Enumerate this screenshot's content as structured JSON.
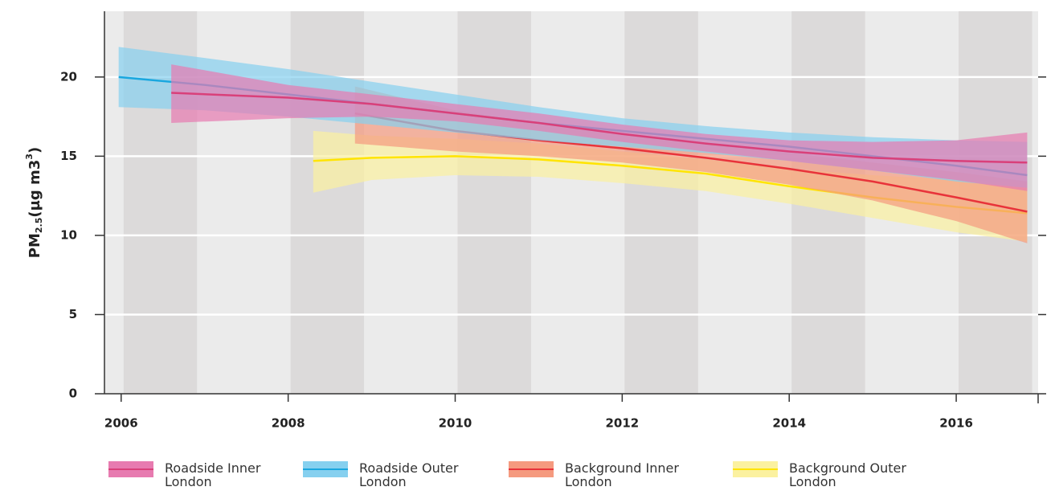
{
  "chart_data": {
    "type": "line",
    "y_label_parts": [
      "PM",
      "2.5",
      "(µg m3",
      "3",
      ")"
    ],
    "xlim": [
      2005.8,
      2017
    ],
    "xticks": [
      2006,
      2008,
      2010,
      2012,
      2014,
      2016
    ],
    "ylim": [
      0,
      24
    ],
    "yticks": [
      0,
      5,
      10,
      15,
      20
    ],
    "grid": true,
    "series": [
      {
        "name": "Roadside Inner London",
        "color": "#d9407a",
        "band_color": "#e77bb0",
        "x": [
          2006.6,
          2008,
          2009,
          2010,
          2011,
          2012,
          2013,
          2014,
          2015,
          2016,
          2016.85
        ],
        "values": [
          19.0,
          18.7,
          18.3,
          17.7,
          17.1,
          16.4,
          15.8,
          15.3,
          14.9,
          14.7,
          14.6
        ],
        "upper": [
          20.8,
          19.5,
          18.9,
          18.3,
          17.7,
          17.0,
          16.4,
          16.0,
          15.9,
          16.0,
          16.5
        ],
        "lower": [
          17.1,
          17.4,
          17.5,
          17.2,
          16.6,
          15.9,
          15.3,
          14.7,
          14.1,
          13.5,
          12.8
        ]
      },
      {
        "name": "Roadside Outer London",
        "color": "#1aa7df",
        "band_color": "#86d0ef",
        "x": [
          2005.97,
          2007,
          2008,
          2009,
          2010,
          2011,
          2012,
          2013,
          2014,
          2015,
          2016,
          2016.85
        ],
        "values": [
          20.0,
          19.5,
          18.9,
          18.3,
          17.7,
          17.1,
          16.6,
          16.1,
          15.6,
          15.0,
          14.4,
          13.8
        ],
        "upper": [
          21.9,
          21.2,
          20.5,
          19.7,
          18.9,
          18.1,
          17.4,
          16.9,
          16.5,
          16.2,
          16.0,
          15.9
        ],
        "lower": [
          18.1,
          17.9,
          17.5,
          17.0,
          16.5,
          16.0,
          15.6,
          15.2,
          14.7,
          14.1,
          13.4,
          13.0
        ]
      },
      {
        "name": "Background Inner London",
        "color": "#e8333a",
        "band_color": "#f59a7f",
        "x": [
          2008.8,
          2010,
          2011,
          2012,
          2013,
          2014,
          2015,
          2016,
          2016.85
        ],
        "values": [
          17.7,
          16.6,
          16.0,
          15.5,
          14.9,
          14.2,
          13.4,
          12.4,
          11.5
        ],
        "upper": [
          19.4,
          17.9,
          17.0,
          16.4,
          15.8,
          15.2,
          14.6,
          14.0,
          13.4
        ],
        "lower": [
          15.8,
          15.3,
          15.0,
          14.6,
          14.0,
          13.2,
          12.2,
          10.9,
          9.5
        ]
      },
      {
        "name": "Background Outer London",
        "color": "#ffe400",
        "band_color": "#fbf1a0",
        "x": [
          2008.3,
          2009,
          2010,
          2011,
          2012,
          2013,
          2014,
          2015,
          2016,
          2016.85
        ],
        "values": [
          14.7,
          14.9,
          15.0,
          14.8,
          14.4,
          13.9,
          13.1,
          12.4,
          11.8,
          11.4
        ],
        "upper": [
          16.6,
          16.3,
          16.1,
          15.8,
          15.3,
          14.8,
          14.2,
          13.8,
          13.5,
          13.3
        ],
        "lower": [
          12.7,
          13.5,
          13.8,
          13.7,
          13.3,
          12.8,
          12.0,
          11.1,
          10.2,
          9.6
        ]
      }
    ]
  }
}
